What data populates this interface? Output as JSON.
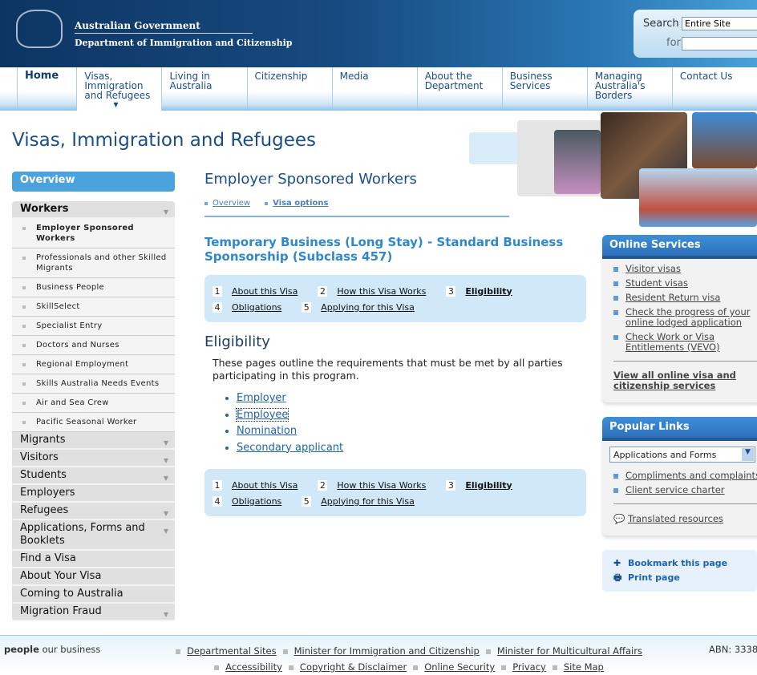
{
  "header": {
    "gov": "Australian Government",
    "dept": "Department of Immigration and Citizenship",
    "search_label": "Search",
    "search_scope": "Entire Site",
    "for_label": "for",
    "search_value": ""
  },
  "nav": [
    "Home",
    "Visas, Immigration and Refugees",
    "Living in Australia",
    "Citizenship",
    "Media",
    "About the Department",
    "Business Services",
    "Managing Australia's Borders",
    "Contact Us"
  ],
  "page_title": "Visas, Immigration and Refugees",
  "sidebar": {
    "overview": "Overview",
    "open": "Workers",
    "sub": [
      "Employer Sponsored Workers",
      "Professionals and other Skilled Migrants",
      "Business People",
      "SkillSelect",
      "Specialist Entry",
      "Doctors and Nurses",
      "Regional Employment",
      "Skills Australia Needs Events",
      "Air and Sea Crew",
      "Pacific Seasonal Worker"
    ],
    "top": [
      {
        "label": "Migrants",
        "arrow": true
      },
      {
        "label": "Visitors",
        "arrow": true
      },
      {
        "label": "Students",
        "arrow": true
      },
      {
        "label": "Employers",
        "arrow": false
      },
      {
        "label": "Refugees",
        "arrow": true
      },
      {
        "label": "Applications, Forms and Booklets",
        "arrow": true
      },
      {
        "label": "Find a Visa",
        "arrow": false
      },
      {
        "label": "About Your Visa",
        "arrow": false
      },
      {
        "label": "Coming to Australia",
        "arrow": false
      },
      {
        "label": "Migration Fraud",
        "arrow": true
      }
    ]
  },
  "main": {
    "heading": "Employer Sponsored Workers",
    "tabs": [
      "Overview",
      "Visa options"
    ],
    "visa_title": "Temporary Business (Long Stay) - Standard Business Sponsorship (Subclass 457)",
    "steps": [
      {
        "n": "1",
        "label": "About this Visa"
      },
      {
        "n": "2",
        "label": "How this Visa Works"
      },
      {
        "n": "3",
        "label": "Eligibility"
      },
      {
        "n": "4",
        "label": "Obligations"
      },
      {
        "n": "5",
        "label": "Applying for this Visa"
      }
    ],
    "section": "Eligibility",
    "intro": "These pages outline the requirements that must be met by all parties participating in this program.",
    "links": [
      "Employer",
      "Employee",
      "Nomination",
      "Secondary applicant"
    ]
  },
  "online": {
    "title": "Online Services",
    "items": [
      "Visitor visas",
      "Student visas",
      "Resident Return visa",
      "Check the progress of your online lodged application",
      "Check Work or Visa Entitlements (VEVO)"
    ],
    "all": "View all online visa and citizenship services"
  },
  "popular": {
    "title": "Popular Links",
    "select": "Applications and Forms",
    "items": [
      "Compliments and complaints",
      "Client service charter"
    ],
    "translated": "Translated resources"
  },
  "tools": {
    "bookmark": "Bookmark this page",
    "print": "Print page"
  },
  "footer": {
    "tag_bold": "people",
    "tag": "our business",
    "row1": [
      "Departmental Sites",
      "Minister for Immigration and Citizenship",
      "Minister for Multicultural Affairs"
    ],
    "row2": [
      "Accessibility",
      "Copyright & Disclaimer",
      "Online Security",
      "Privacy",
      "Site Map"
    ],
    "abn": "ABN: 3338"
  }
}
